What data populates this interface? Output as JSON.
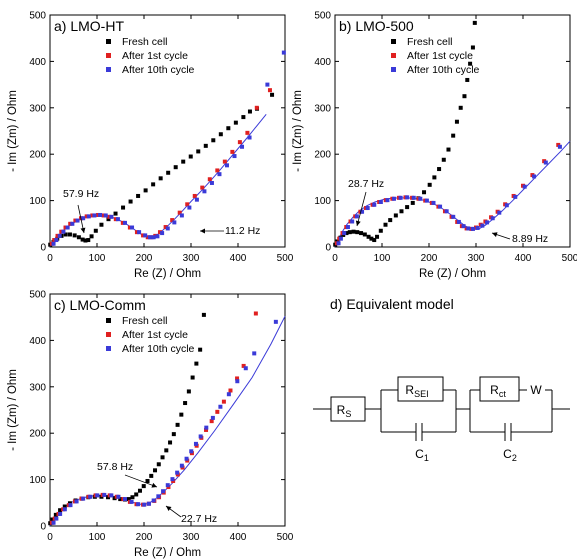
{
  "chart_data": [
    {
      "type": "scatter",
      "panel_title": "a) LMO-HT",
      "xlabel": "Re (Z) / Ohm",
      "ylabel": "- Im (Zm) / Ohm",
      "xlim": [
        0,
        500
      ],
      "ylim": [
        0,
        500
      ],
      "xticks": [
        0,
        100,
        200,
        300,
        400,
        500
      ],
      "yticks": [
        0,
        100,
        200,
        300,
        400,
        500
      ],
      "legend_position": "top-left",
      "series": [
        {
          "name": "Fresh cell",
          "color": "#000000",
          "x": [
            3,
            10,
            18,
            27,
            36,
            45,
            55,
            64,
            72,
            78,
            84,
            91,
            100,
            112,
            127,
            142,
            158,
            174,
            190,
            206,
            222,
            238,
            254,
            270,
            286,
            302,
            318,
            334,
            350,
            366,
            382,
            398,
            414,
            428,
            443,
            475
          ],
          "y": [
            5,
            11,
            18,
            24,
            27,
            27,
            25,
            21,
            16,
            14,
            15,
            23,
            35,
            48,
            60,
            72,
            85,
            98,
            110,
            122,
            135,
            148,
            160,
            172,
            184,
            195,
            206,
            218,
            230,
            243,
            256,
            268,
            280,
            292,
            298,
            328
          ]
        },
        {
          "name": "After 1st cycle",
          "color": "#e02020",
          "x": [
            4,
            9,
            16,
            24,
            33,
            43,
            54,
            66,
            78,
            90,
            102,
            114,
            126,
            140,
            155,
            170,
            185,
            198,
            208,
            216,
            224,
            234,
            246,
            260,
            276,
            292,
            308,
            324,
            340,
            356,
            372,
            388,
            404,
            420,
            440,
            468
          ],
          "y": [
            7,
            15,
            24,
            33,
            42,
            50,
            57,
            62,
            66,
            68,
            69,
            68,
            65,
            60,
            52,
            42,
            32,
            25,
            21,
            21,
            24,
            32,
            43,
            58,
            74,
            92,
            110,
            128,
            146,
            165,
            184,
            205,
            226,
            246,
            300,
            338
          ]
        },
        {
          "name": "After 10th cycle",
          "color": "#3a3ad8",
          "x": [
            5,
            11,
            18,
            26,
            35,
            45,
            56,
            68,
            80,
            92,
            104,
            116,
            128,
            142,
            157,
            172,
            187,
            200,
            210,
            218,
            226,
            236,
            248,
            262,
            278,
            294,
            310,
            326,
            342,
            358,
            374,
            390,
            406,
            422,
            460,
            495
          ],
          "y": [
            7,
            15,
            24,
            33,
            42,
            50,
            57,
            62,
            66,
            68,
            69,
            68,
            65,
            60,
            52,
            42,
            32,
            25,
            21,
            21,
            23,
            30,
            40,
            53,
            68,
            85,
            102,
            120,
            138,
            157,
            176,
            196,
            216,
            236,
            350,
            419
          ]
        }
      ],
      "fit_line": {
        "x": [
          0,
          2,
          5,
          10,
          18,
          28,
          40,
          55,
          70,
          85,
          100,
          115,
          130,
          145,
          160,
          175,
          190,
          200,
          208,
          215,
          222,
          230,
          240,
          252,
          266,
          282,
          300,
          320,
          340,
          360,
          380,
          400,
          420,
          440,
          460
        ],
        "y": [
          0,
          3,
          8,
          15,
          24,
          35,
          45,
          55,
          62,
          67,
          69,
          68,
          65,
          59,
          51,
          41,
          30,
          24,
          21,
          21,
          23,
          28,
          36,
          47,
          61,
          78,
          98,
          119,
          141,
          164,
          188,
          212,
          236,
          261,
          286
        ]
      },
      "annotations": [
        "57.9 Hz",
        "11.2 Hz"
      ]
    },
    {
      "type": "scatter",
      "panel_title": "b) LMO-500",
      "xlabel": "Re (Z) / Ohm",
      "ylabel": "- Im (Zm) / Ohm",
      "xlim": [
        0,
        500
      ],
      "ylim": [
        0,
        500
      ],
      "xticks": [
        0,
        100,
        200,
        300,
        400,
        500
      ],
      "yticks": [
        0,
        100,
        200,
        300,
        400,
        500
      ],
      "legend_position": "top-left",
      "series": [
        {
          "name": "Fresh cell",
          "color": "#000000",
          "x": [
            3,
            8,
            14,
            20,
            27,
            34,
            42,
            50,
            58,
            66,
            74,
            80,
            86,
            92,
            100,
            110,
            120,
            132,
            144,
            156,
            168,
            180,
            192,
            204,
            214,
            224,
            234,
            244,
            254,
            262,
            270,
            278,
            284,
            290,
            296,
            300
          ],
          "y": [
            5,
            12,
            20,
            26,
            30,
            32,
            33,
            32,
            30,
            27,
            22,
            18,
            15,
            22,
            35,
            48,
            58,
            68,
            77,
            86,
            95,
            105,
            118,
            134,
            150,
            168,
            188,
            210,
            240,
            270,
            300,
            325,
            360,
            395,
            430,
            483
          ]
        },
        {
          "name": "After 1st cycle",
          "color": "#e02020",
          "x": [
            4,
            9,
            16,
            24,
            33,
            43,
            54,
            66,
            80,
            94,
            108,
            122,
            136,
            150,
            164,
            178,
            192,
            206,
            220,
            234,
            248,
            260,
            270,
            280,
            290,
            300,
            310,
            320,
            332,
            346,
            362,
            380,
            400,
            420,
            445,
            475
          ],
          "y": [
            8,
            18,
            30,
            43,
            55,
            66,
            76,
            84,
            91,
            97,
            101,
            104,
            106,
            107,
            106,
            104,
            100,
            95,
            87,
            77,
            65,
            54,
            45,
            40,
            39,
            42,
            48,
            55,
            64,
            76,
            92,
            110,
            132,
            155,
            185,
            220
          ]
        },
        {
          "name": "After 10th cycle",
          "color": "#3a3ad8",
          "x": [
            5,
            10,
            17,
            25,
            34,
            44,
            55,
            67,
            81,
            95,
            109,
            123,
            137,
            151,
            165,
            179,
            193,
            207,
            221,
            235,
            249,
            261,
            271,
            281,
            291,
            301,
            311,
            321,
            333,
            347,
            363,
            381,
            401,
            421,
            446,
            476
          ],
          "y": [
            8,
            18,
            30,
            43,
            55,
            66,
            76,
            84,
            91,
            97,
            101,
            104,
            106,
            107,
            106,
            104,
            100,
            95,
            87,
            77,
            65,
            54,
            45,
            40,
            39,
            41,
            46,
            53,
            62,
            74,
            90,
            108,
            130,
            152,
            182,
            216
          ]
        }
      ],
      "fit_line": {
        "x": [
          0,
          3,
          8,
          15,
          25,
          38,
          52,
          68,
          85,
          102,
          120,
          138,
          156,
          174,
          192,
          210,
          228,
          246,
          262,
          276,
          288,
          298,
          308,
          320,
          336,
          356,
          380,
          405,
          430,
          455,
          480,
          500
        ],
        "y": [
          0,
          8,
          18,
          32,
          48,
          64,
          78,
          89,
          97,
          102,
          105,
          106,
          106,
          104,
          100,
          93,
          83,
          70,
          57,
          46,
          40,
          38,
          40,
          47,
          60,
          78,
          102,
          128,
          154,
          180,
          206,
          228
        ]
      },
      "annotations": [
        "28.7 Hz",
        "8.89 Hz"
      ]
    },
    {
      "type": "scatter",
      "panel_title": "c) LMO-Comm",
      "xlabel": "Re (Z) / Ohm",
      "ylabel": "- Im (Zm) / Ohm",
      "xlim": [
        0,
        500
      ],
      "ylim": [
        0,
        500
      ],
      "xticks": [
        0,
        100,
        200,
        300,
        400,
        500
      ],
      "yticks": [
        0,
        100,
        200,
        300,
        400,
        500
      ],
      "legend_position": "top-left",
      "series": [
        {
          "name": "Fresh cell",
          "color": "#000000",
          "x": [
            3,
            8,
            15,
            24,
            34,
            45,
            57,
            70,
            84,
            98,
            112,
            126,
            140,
            152,
            162,
            170,
            178,
            186,
            194,
            202,
            210,
            218,
            226,
            234,
            242,
            250,
            258,
            266,
            274,
            282,
            290,
            298,
            306,
            314,
            322,
            330
          ],
          "y": [
            6,
            14,
            24,
            34,
            42,
            49,
            55,
            59,
            62,
            63,
            63,
            62,
            60,
            58,
            57,
            58,
            62,
            68,
            76,
            86,
            97,
            108,
            120,
            133,
            148,
            163,
            180,
            198,
            218,
            240,
            265,
            290,
            320,
            350,
            380,
            455
          ]
        },
        {
          "name": "After 1st cycle",
          "color": "#e02020",
          "x": [
            4,
            10,
            18,
            28,
            40,
            53,
            67,
            82,
            97,
            112,
            127,
            142,
            156,
            170,
            184,
            198,
            210,
            222,
            232,
            242,
            252,
            262,
            272,
            282,
            292,
            302,
            312,
            322,
            332,
            344,
            356,
            370,
            384,
            398,
            412,
            438
          ],
          "y": [
            7,
            16,
            26,
            36,
            45,
            53,
            59,
            63,
            66,
            67,
            66,
            63,
            58,
            52,
            47,
            46,
            48,
            54,
            62,
            72,
            84,
            97,
            111,
            126,
            141,
            157,
            173,
            190,
            207,
            226,
            246,
            268,
            292,
            318,
            345,
            458
          ]
        },
        {
          "name": "After 10th cycle",
          "color": "#3a3ad8",
          "x": [
            5,
            11,
            19,
            29,
            41,
            54,
            68,
            83,
            98,
            113,
            128,
            143,
            157,
            171,
            185,
            198,
            208,
            218,
            228,
            238,
            248,
            258,
            268,
            278,
            288,
            298,
            308,
            318,
            330,
            344,
            360,
            378,
            396,
            414,
            432,
            478
          ],
          "y": [
            7,
            16,
            26,
            36,
            45,
            53,
            59,
            63,
            66,
            67,
            66,
            63,
            58,
            52,
            47,
            46,
            48,
            55,
            64,
            75,
            88,
            101,
            115,
            130,
            145,
            161,
            177,
            193,
            212,
            233,
            257,
            284,
            312,
            340,
            372,
            440
          ]
        }
      ],
      "fit_line": {
        "x": [
          0,
          4,
          10,
          18,
          28,
          40,
          54,
          70,
          86,
          102,
          118,
          134,
          150,
          165,
          180,
          192,
          202,
          212,
          224,
          240,
          260,
          285,
          315,
          350,
          390,
          430,
          470,
          500
        ],
        "y": [
          0,
          8,
          18,
          29,
          39,
          48,
          55,
          61,
          64,
          66,
          66,
          64,
          60,
          55,
          50,
          47,
          47,
          50,
          58,
          72,
          92,
          120,
          158,
          205,
          262,
          320,
          392,
          452
        ]
      },
      "annotations": [
        "57.8 Hz",
        "22.7 Hz"
      ]
    }
  ],
  "equivalent_model": {
    "title": "d) Equivalent model",
    "labels": {
      "rs": "R",
      "rs_sub": "S",
      "rsei": "R",
      "rsei_sub": "SEI",
      "rct": "R",
      "rct_sub": "ct",
      "w": "W",
      "c1": "C",
      "c1_sub": "1",
      "c2": "C",
      "c2_sub": "2"
    }
  }
}
